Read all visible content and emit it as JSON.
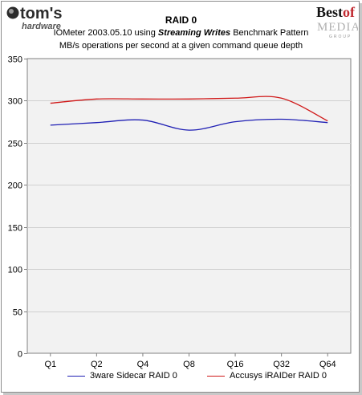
{
  "branding": {
    "left_logo_line1": "tom's",
    "left_logo_line2": "hardware",
    "right_logo_line1a": "Best",
    "right_logo_line1b": "of",
    "right_logo_line2": "MEDIA",
    "right_logo_line3": "GROUP"
  },
  "colors": {
    "series1": "#1f1fb4",
    "series2": "#d01818",
    "plot_bg": "#f2f2f2",
    "grid": "#d0d0d0"
  },
  "chart_data": {
    "type": "line",
    "title": "RAID 0",
    "subtitle_prefix": "IOMeter 2003.05.10 using ",
    "subtitle_emphasis": "Streaming Writes",
    "subtitle_suffix": " Benchmark Pattern",
    "subtitle2": "MB/s operations per second at a given command queue depth",
    "categories": [
      "Q1",
      "Q2",
      "Q4",
      "Q8",
      "Q16",
      "Q32",
      "Q64"
    ],
    "series": [
      {
        "name": "3ware Sidecar RAID 0",
        "values": [
          271,
          274,
          277,
          265,
          275,
          278,
          274
        ]
      },
      {
        "name": "Accusys iRAIDer RAID 0",
        "values": [
          297,
          302,
          302,
          302,
          303,
          303,
          276
        ]
      }
    ],
    "ylim": [
      0,
      350
    ],
    "yticks": [
      "0",
      "50",
      "100",
      "150",
      "200",
      "250",
      "300",
      "350"
    ],
    "grid": true,
    "legend_position": "bottom"
  }
}
